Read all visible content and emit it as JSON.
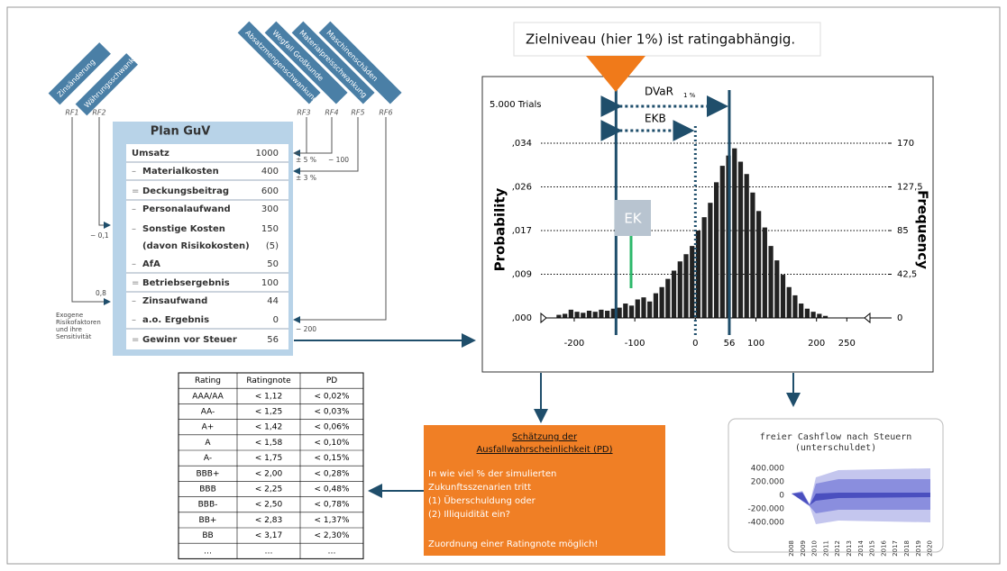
{
  "risk_factors": {
    "banners": [
      "Zinsänderung",
      "Währungsschwankung",
      "Absatzmengenschwankung",
      "Wegfall Großkunde",
      "Materialpreisschwankung",
      "Maschinenschäden"
    ],
    "labels": [
      "RF1",
      "RF2",
      "RF3",
      "RF4",
      "RF5",
      "RF6"
    ],
    "sensitivities": [
      "± 5 %",
      "− 100",
      "± 3 %",
      "− 0,1",
      "0,8",
      "− 200"
    ],
    "note": [
      "Exogene",
      "Risikofaktoren",
      "und ihre",
      "Sensitivität"
    ]
  },
  "plan": {
    "title": "Plan GuV",
    "rows": [
      {
        "label": "Umsatz",
        "value": "1000"
      },
      {
        "prefix": "–",
        "label": "Materialkosten",
        "value": "400"
      },
      {
        "prefix": "=",
        "label": "Deckungsbeitrag",
        "value": "600"
      },
      {
        "prefix": "–",
        "label": "Personalaufwand",
        "value": "300"
      },
      {
        "prefix": "–",
        "label": "Sonstige Kosten",
        "value": "150"
      },
      {
        "label": "(davon Risikokosten)",
        "value": "(5)"
      },
      {
        "prefix": "–",
        "label": "AfA",
        "value": "50"
      },
      {
        "prefix": "=",
        "label": "Betriebsergebnis",
        "value": "100"
      },
      {
        "prefix": "–",
        "label": "Zinsaufwand",
        "value": "44"
      },
      {
        "prefix": "–",
        "label": "a.o. Ergebnis",
        "value": "0"
      },
      {
        "prefix": "=",
        "label": "Gewinn vor Steuer",
        "value": "56"
      }
    ]
  },
  "headline": "Zielniveau (hier 1%) ist ratingabhängig.",
  "histogram": {
    "trials": "5.000 Trials",
    "ylabel": "Probability",
    "y2label": "Frequency",
    "dvar": "DVaR",
    "dvar_sub": "1 %",
    "ekb": "EKB",
    "ek": "EK",
    "xlim": [
      -255,
      318
    ],
    "ylim": [
      0,
      0.034
    ],
    "y2lim": [
      0,
      170
    ],
    "xticks": [
      -200,
      -100,
      0,
      56,
      100,
      200,
      250
    ],
    "yticks": [
      {
        "value": 0,
        "label": ",000"
      },
      {
        "value": 0.0085,
        "label": ",009"
      },
      {
        "value": 0.017,
        "label": ",017"
      },
      {
        "value": 0.0255,
        "label": ",026"
      },
      {
        "value": 0.034,
        "label": ",034"
      }
    ],
    "y2ticks": [
      0,
      {
        "value": 42.5,
        "label": "42,5"
      },
      85,
      {
        "value": 127.5,
        "label": "127,5"
      },
      170
    ],
    "quantile": -131,
    "zero_line": 0,
    "mean": 56,
    "bins": [
      -230,
      -220,
      -210,
      -200,
      -190,
      -180,
      -170,
      -160,
      -150,
      -140,
      -130,
      -120,
      -110,
      -100,
      -90,
      -80,
      -70,
      -60,
      -50,
      -40,
      -30,
      -20,
      -10,
      0,
      10,
      20,
      30,
      40,
      50,
      60,
      70,
      80,
      90,
      100,
      110,
      120,
      130,
      140,
      150,
      160,
      170,
      180,
      190,
      200,
      210,
      220
    ],
    "counts": [
      3,
      4,
      8,
      6,
      5,
      7,
      6,
      8,
      7,
      9,
      10,
      14,
      12,
      18,
      20,
      16,
      24,
      30,
      38,
      46,
      55,
      62,
      70,
      85,
      98,
      112,
      132,
      148,
      158,
      165,
      152,
      140,
      122,
      104,
      88,
      70,
      56,
      42,
      30,
      22,
      14,
      9,
      6,
      4,
      2
    ]
  },
  "pd_box": {
    "title": [
      "Schätzung der",
      "Ausfallwahrscheinlichkeit (PD)"
    ],
    "lines": [
      "In wie viel % der simulierten",
      "Zukunftsszenarien tritt",
      "(1) Überschuldung oder",
      "(2) Illiquidität ein?"
    ],
    "footer": "Zuordnung einer Ratingnote möglich!"
  },
  "table": {
    "header": [
      "Rating",
      "Ratingnote",
      "PD"
    ],
    "rows": [
      [
        "AAA/AA",
        "< 1,12",
        "< 0,02%"
      ],
      [
        "AA-",
        "< 1,25",
        "< 0,03%"
      ],
      [
        "A+",
        "< 1,42",
        "< 0,06%"
      ],
      [
        "A",
        "< 1,58",
        "< 0,10%"
      ],
      [
        "A-",
        "< 1,75",
        "< 0,15%"
      ],
      [
        "BBB+",
        "< 2,00",
        "< 0,28%"
      ],
      [
        "BBB",
        "< 2,25",
        "< 0,48%"
      ],
      [
        "BBB-",
        "< 2,50",
        "< 0,78%"
      ],
      [
        "BB+",
        "< 2,83",
        "< 1,37%"
      ],
      [
        "BB",
        "< 3,17",
        "< 2,30%"
      ],
      [
        "…",
        "…",
        "…"
      ]
    ]
  },
  "cashflow": {
    "title": [
      "freier Cashflow nach Steuern",
      "(unterschuldet)"
    ],
    "yticks": [
      "400.000",
      "200.000",
      "0",
      "-200.000",
      "-400.000"
    ],
    "years": [
      "2008",
      "2009",
      "2010",
      "2011",
      "2012",
      "2013",
      "2014",
      "2015",
      "2016",
      "2017",
      "2018",
      "2019",
      "2020"
    ]
  }
}
